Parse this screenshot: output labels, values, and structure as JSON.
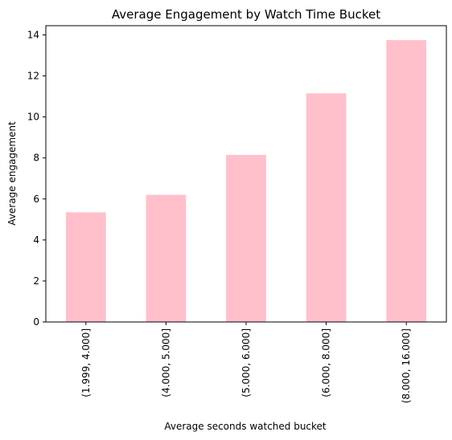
{
  "chart_data": {
    "type": "bar",
    "title": "Average Engagement by Watch Time Bucket",
    "xlabel": "Average seconds watched bucket",
    "ylabel": "Average engagement",
    "categories": [
      "(1.999, 4.000]",
      "(4.000, 5.000]",
      "(5.000, 6.000]",
      "(6.000, 8.000]",
      "(8.000, 16.000]"
    ],
    "values": [
      5.35,
      6.2,
      8.15,
      11.15,
      13.75
    ],
    "ylim": [
      0,
      14.45
    ],
    "yticks": [
      0,
      2,
      4,
      6,
      8,
      10,
      12,
      14
    ],
    "grid": false,
    "legend": "none",
    "bar_color": "#ffc0cb"
  }
}
